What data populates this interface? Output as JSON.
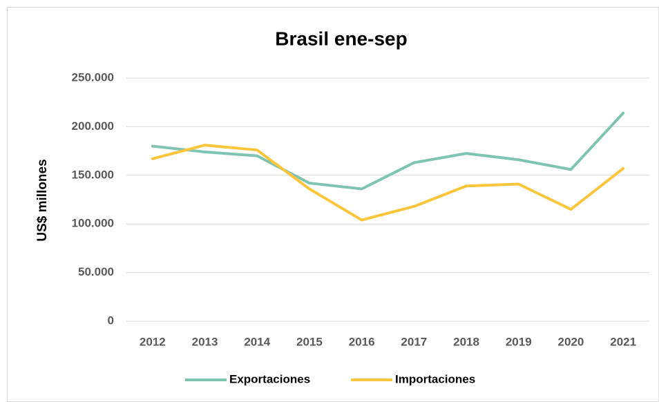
{
  "chart_data": {
    "type": "line",
    "title": "Brasil ene-sep",
    "ylabel": "US$ millones",
    "categories": [
      "2012",
      "2013",
      "2014",
      "2015",
      "2016",
      "2017",
      "2018",
      "2019",
      "2020",
      "2021"
    ],
    "series": [
      {
        "name": "Exportaciones",
        "color": "#7fc3b1",
        "values": [
          180000,
          174000,
          170000,
          142000,
          136000,
          163000,
          172500,
          166000,
          156000,
          214000
        ]
      },
      {
        "name": "Importaciones",
        "color": "#fcc63c",
        "values": [
          167000,
          181000,
          176000,
          136000,
          104000,
          118000,
          139000,
          141000,
          115000,
          157000
        ]
      }
    ],
    "ylim": [
      0,
      250000
    ],
    "yticks": [
      0,
      {
        "value": 50000,
        "label": "50.000"
      },
      {
        "value": 100000,
        "label": "100.000"
      },
      {
        "value": 150000,
        "label": "150.000"
      },
      {
        "value": 200000,
        "label": "200.000"
      },
      {
        "value": 250000,
        "label": "250.000"
      }
    ],
    "grid": true,
    "legend": "bottom"
  }
}
